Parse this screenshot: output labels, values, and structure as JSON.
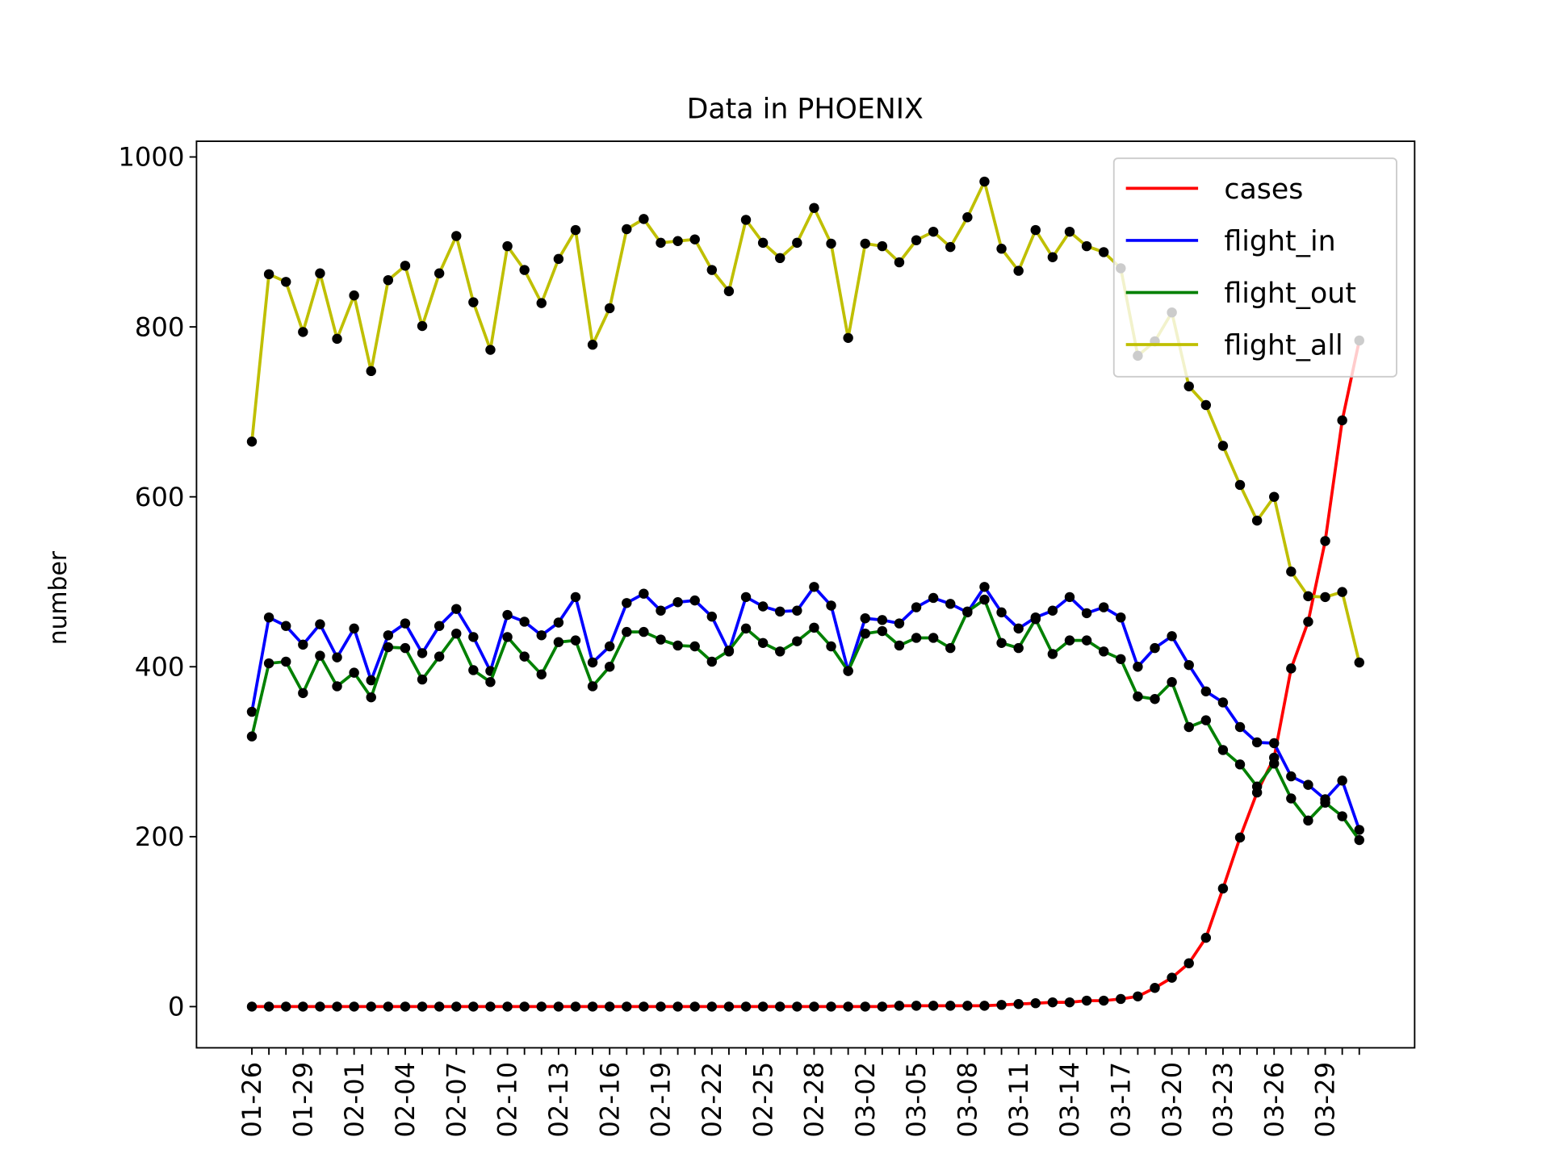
{
  "chart_data": {
    "type": "line",
    "title": "Data in PHOENIX",
    "y_label": "number",
    "categories": [
      "01-26",
      null,
      null,
      "01-29",
      null,
      null,
      "02-01",
      null,
      null,
      "02-04",
      null,
      null,
      "02-07",
      null,
      null,
      "02-10",
      null,
      null,
      "02-13",
      null,
      null,
      "02-16",
      null,
      null,
      "02-19",
      null,
      null,
      "02-22",
      null,
      null,
      "02-25",
      null,
      null,
      "02-28",
      null,
      null,
      "03-02",
      null,
      null,
      "03-05",
      null,
      null,
      "03-08",
      null,
      null,
      "03-11",
      null,
      null,
      "03-14",
      null,
      null,
      "03-17",
      null,
      null,
      "03-20",
      null,
      null,
      "03-23",
      null,
      null,
      "03-26",
      null,
      null,
      "03-29",
      null,
      null
    ],
    "series": [
      {
        "name": "cases",
        "color": "#ff0000",
        "values": [
          0,
          0,
          0,
          0,
          0,
          0,
          0,
          0,
          0,
          0,
          0,
          0,
          0,
          0,
          0,
          0,
          0,
          0,
          0,
          0,
          0,
          0,
          0,
          0,
          0,
          0,
          0,
          0,
          0,
          0,
          0,
          0,
          0,
          0,
          0,
          0,
          0,
          0,
          1,
          1,
          1,
          1,
          1,
          1,
          2,
          3,
          4,
          5,
          5,
          7,
          7,
          9,
          12,
          22,
          34,
          51,
          81,
          139,
          199,
          252,
          293,
          398,
          453,
          548,
          690,
          784
        ]
      },
      {
        "name": "flight_in",
        "color": "#0000ff",
        "values": [
          347,
          458,
          448,
          426,
          450,
          411,
          445,
          384,
          437,
          451,
          416,
          448,
          468,
          435,
          395,
          461,
          453,
          437,
          452,
          482,
          405,
          424,
          475,
          486,
          466,
          476,
          478,
          459,
          418,
          482,
          471,
          465,
          466,
          494,
          472,
          395,
          457,
          455,
          451,
          470,
          481,
          474,
          464,
          494,
          464,
          445,
          458,
          466,
          482,
          463,
          470,
          458,
          400,
          422,
          436,
          402,
          371,
          358,
          329,
          311,
          310,
          271,
          261,
          244,
          266,
          208
        ]
      },
      {
        "name": "flight_out",
        "color": "#008000",
        "values": [
          318,
          404,
          406,
          369,
          413,
          377,
          393,
          364,
          423,
          422,
          385,
          412,
          439,
          396,
          382,
          435,
          412,
          391,
          429,
          431,
          377,
          400,
          441,
          441,
          432,
          425,
          424,
          406,
          419,
          445,
          428,
          418,
          430,
          446,
          424,
          395,
          439,
          442,
          425,
          434,
          434,
          422,
          465,
          479,
          428,
          422,
          456,
          415,
          431,
          431,
          418,
          409,
          365,
          362,
          382,
          329,
          337,
          302,
          285,
          259,
          286,
          245,
          219,
          240,
          224,
          196
        ]
      },
      {
        "name": "flight_all",
        "color": "#bfbf00",
        "values": [
          665,
          862,
          853,
          794,
          863,
          786,
          837,
          748,
          855,
          872,
          801,
          863,
          907,
          829,
          773,
          895,
          867,
          828,
          880,
          914,
          779,
          822,
          915,
          927,
          899,
          901,
          903,
          867,
          842,
          926,
          899,
          881,
          899,
          940,
          898,
          787,
          898,
          895,
          876,
          902,
          912,
          894,
          929,
          971,
          892,
          866,
          914,
          882,
          912,
          895,
          888,
          869,
          766,
          783,
          817,
          730,
          708,
          660,
          614,
          572,
          600,
          512,
          483,
          482,
          488,
          405
        ]
      }
    ],
    "marker_color": "#000000",
    "ylim": [
      -48.5,
      1018.5
    ],
    "yticks": [
      0,
      200,
      400,
      600,
      800,
      1000
    ],
    "grid": false,
    "legend": "upper right"
  }
}
